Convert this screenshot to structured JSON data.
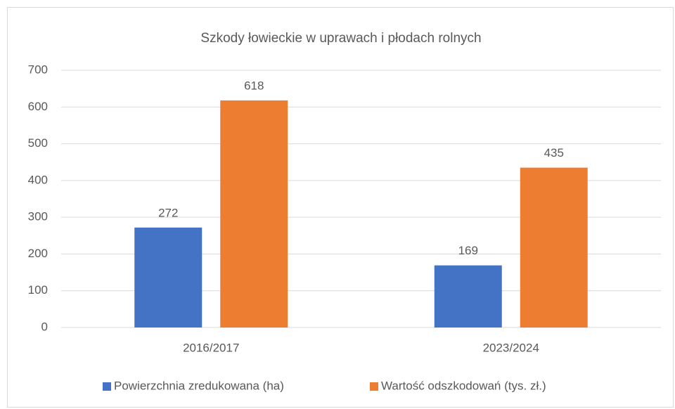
{
  "chart_data": {
    "type": "bar",
    "title": "Szkody łowieckie w uprawach i płodach rolnych",
    "categories": [
      "2016/2017",
      "2023/2024"
    ],
    "series": [
      {
        "name": "Powierzchnia zredukowana (ha)",
        "color": "#4472c4",
        "values": [
          272,
          169
        ]
      },
      {
        "name": "Wartość odszkodowań (tys. zł.)",
        "color": "#ed7d31",
        "values": [
          618,
          435
        ]
      }
    ],
    "ylim": [
      0,
      700
    ],
    "yticks": [
      0,
      100,
      200,
      300,
      400,
      500,
      600,
      700
    ],
    "grid": true,
    "legend": "bottom"
  }
}
